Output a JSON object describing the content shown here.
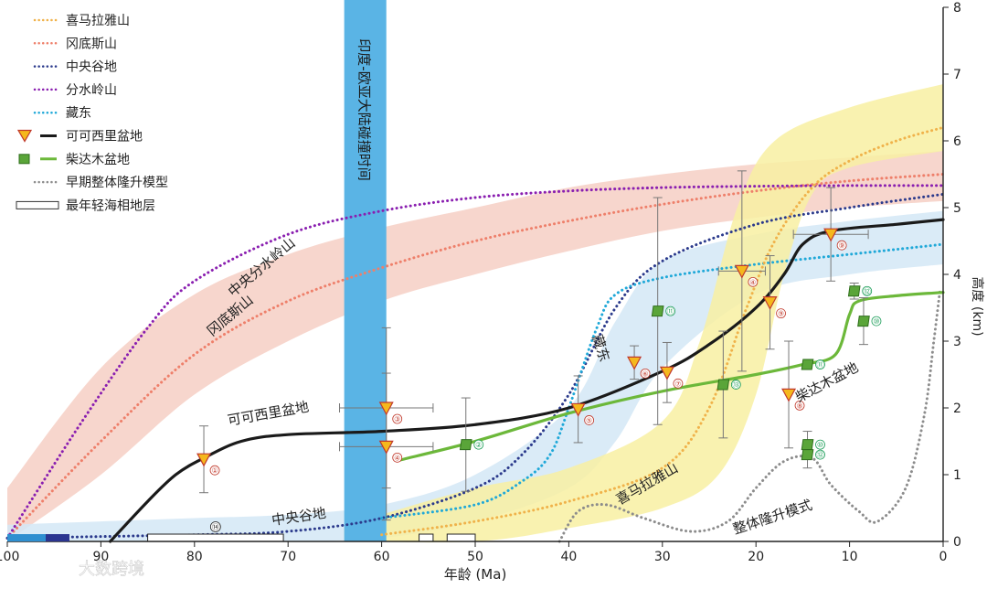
{
  "chart_data": {
    "type": "line",
    "xlabel": "年龄 (Ma)",
    "ylabel": "高度 (km)",
    "xlim": [
      100,
      0
    ],
    "ylim": [
      0,
      8
    ],
    "x_ticks": [
      "100",
      "90",
      "80",
      "70",
      "60",
      "50",
      "40",
      "30",
      "20",
      "10",
      "0"
    ],
    "y_ticks": [
      "0",
      "1",
      "2",
      "3",
      "4",
      "5",
      "6",
      "7",
      "8"
    ],
    "collision_band": {
      "label": "印度-欧亚大陆碰撞时间",
      "x_range": [
        64,
        59.5
      ],
      "color": "#5ab4e5"
    },
    "legend": [
      {
        "label": "喜马拉雅山",
        "style": "dotted",
        "color": "#f0b24a",
        "marker": "none"
      },
      {
        "label": "冈底斯山",
        "style": "dotted",
        "color": "#ee7f6a",
        "marker": "none"
      },
      {
        "label": "中央谷地",
        "style": "dotted",
        "color": "#2b3a8c",
        "marker": "none"
      },
      {
        "label": "分水岭山",
        "style": "dotted",
        "color": "#8a1fb0",
        "marker": "none"
      },
      {
        "label": "藏东",
        "style": "dotted",
        "color": "#1fa8d8",
        "marker": "none"
      },
      {
        "label": "可可西里盆地",
        "style": "solid",
        "color": "#1a1a1a",
        "marker": "triangle"
      },
      {
        "label": "柴达木盆地",
        "style": "solid",
        "color": "#6cb83a",
        "marker": "square"
      },
      {
        "label": "早期整体隆升模型",
        "style": "dotted",
        "color": "#8c8c8c",
        "marker": "none"
      },
      {
        "label": "最年轻海相地层",
        "style": "box",
        "color": "#333333",
        "marker": "none"
      }
    ],
    "bands": [
      {
        "name": "冈底斯山",
        "color": "#f6cfc4",
        "upper": [
          [
            100,
            0.8
          ],
          [
            90,
            2.6
          ],
          [
            80,
            3.7
          ],
          [
            70,
            4.3
          ],
          [
            60,
            4.7
          ],
          [
            50,
            5.0
          ],
          [
            40,
            5.3
          ],
          [
            30,
            5.5
          ],
          [
            20,
            5.65
          ],
          [
            10,
            5.75
          ],
          [
            0,
            5.85
          ]
        ],
        "lower": [
          [
            100,
            0.0
          ],
          [
            90,
            1.0
          ],
          [
            80,
            2.2
          ],
          [
            70,
            3.0
          ],
          [
            60,
            3.6
          ],
          [
            50,
            4.0
          ],
          [
            40,
            4.35
          ],
          [
            30,
            4.65
          ],
          [
            20,
            4.85
          ],
          [
            10,
            5.0
          ],
          [
            0,
            5.1
          ]
        ]
      },
      {
        "name": "中央谷地",
        "color": "#d3e8f6",
        "upper": [
          [
            100,
            0.25
          ],
          [
            90,
            0.3
          ],
          [
            80,
            0.35
          ],
          [
            70,
            0.4
          ],
          [
            60,
            0.55
          ],
          [
            50,
            1.0
          ],
          [
            40,
            2.0
          ],
          [
            35,
            3.3
          ],
          [
            30,
            4.2
          ],
          [
            20,
            4.6
          ],
          [
            10,
            4.8
          ],
          [
            0,
            4.95
          ]
        ],
        "lower": [
          [
            100,
            0.0
          ],
          [
            90,
            0.0
          ],
          [
            80,
            0.0
          ],
          [
            70,
            0.0
          ],
          [
            60,
            0.05
          ],
          [
            50,
            0.3
          ],
          [
            40,
            0.8
          ],
          [
            35,
            1.5
          ],
          [
            30,
            2.6
          ],
          [
            20,
            3.7
          ],
          [
            10,
            4.0
          ],
          [
            0,
            4.15
          ]
        ]
      },
      {
        "name": "喜马拉雅山",
        "color": "#f8f0a2",
        "upper": [
          [
            64,
            0.2
          ],
          [
            60,
            0.4
          ],
          [
            50,
            0.8
          ],
          [
            40,
            1.1
          ],
          [
            30,
            1.8
          ],
          [
            26,
            3.0
          ],
          [
            22,
            5.0
          ],
          [
            18,
            6.0
          ],
          [
            10,
            6.5
          ],
          [
            0,
            6.85
          ]
        ],
        "lower": [
          [
            64,
            0.0
          ],
          [
            50,
            0.0
          ],
          [
            40,
            0.2
          ],
          [
            30,
            0.5
          ],
          [
            24,
            1.0
          ],
          [
            20,
            2.2
          ],
          [
            17,
            4.0
          ],
          [
            14,
            5.2
          ],
          [
            10,
            5.6
          ],
          [
            0,
            5.85
          ]
        ]
      }
    ],
    "series": [
      {
        "name": "冈底斯山",
        "style": "dotted",
        "color": "#ee7f6a",
        "points": [
          [
            100,
            0.05
          ],
          [
            90,
            1.5
          ],
          [
            80,
            2.8
          ],
          [
            70,
            3.6
          ],
          [
            60,
            4.1
          ],
          [
            50,
            4.5
          ],
          [
            40,
            4.8
          ],
          [
            30,
            5.05
          ],
          [
            20,
            5.25
          ],
          [
            10,
            5.4
          ],
          [
            0,
            5.5
          ]
        ]
      },
      {
        "name": "分水岭山",
        "style": "dotted",
        "color": "#8a1fb0",
        "points": [
          [
            100,
            0.05
          ],
          [
            92,
            1.8
          ],
          [
            85,
            3.2
          ],
          [
            80,
            3.9
          ],
          [
            70,
            4.6
          ],
          [
            60,
            4.95
          ],
          [
            50,
            5.15
          ],
          [
            40,
            5.25
          ],
          [
            30,
            5.3
          ],
          [
            20,
            5.32
          ],
          [
            10,
            5.33
          ],
          [
            0,
            5.33
          ]
        ]
      },
      {
        "name": "中央谷地",
        "style": "dotted",
        "color": "#2b3a8c",
        "points": [
          [
            100,
            0.05
          ],
          [
            80,
            0.1
          ],
          [
            70,
            0.15
          ],
          [
            60,
            0.35
          ],
          [
            50,
            0.8
          ],
          [
            45,
            1.3
          ],
          [
            40,
            2.2
          ],
          [
            35,
            3.5
          ],
          [
            30,
            4.2
          ],
          [
            20,
            4.75
          ],
          [
            10,
            5.0
          ],
          [
            0,
            5.2
          ]
        ]
      },
      {
        "name": "藏东",
        "style": "dotted",
        "color": "#1fa8d8",
        "points": [
          [
            60,
            0.35
          ],
          [
            50,
            0.55
          ],
          [
            45,
            0.9
          ],
          [
            42,
            1.3
          ],
          [
            40,
            2.0
          ],
          [
            37,
            3.2
          ],
          [
            35,
            3.7
          ],
          [
            30,
            3.95
          ],
          [
            20,
            4.15
          ],
          [
            10,
            4.3
          ],
          [
            0,
            4.45
          ]
        ]
      },
      {
        "name": "喜马拉雅山",
        "style": "dotted",
        "color": "#f0b24a",
        "points": [
          [
            60,
            0.1
          ],
          [
            50,
            0.3
          ],
          [
            40,
            0.6
          ],
          [
            30,
            1.1
          ],
          [
            25,
            2.0
          ],
          [
            21,
            3.5
          ],
          [
            18,
            4.5
          ],
          [
            14,
            5.3
          ],
          [
            10,
            5.7
          ],
          [
            5,
            6.0
          ],
          [
            0,
            6.2
          ]
        ]
      },
      {
        "name": "早期整体隆升模型",
        "style": "dotted",
        "color": "#8c8c8c",
        "points": [
          [
            41,
            0.0
          ],
          [
            39,
            0.45
          ],
          [
            36,
            0.55
          ],
          [
            32,
            0.35
          ],
          [
            27,
            0.15
          ],
          [
            23,
            0.3
          ],
          [
            20,
            0.8
          ],
          [
            17,
            1.2
          ],
          [
            14,
            1.25
          ],
          [
            12,
            0.85
          ],
          [
            9,
            0.45
          ],
          [
            7,
            0.3
          ],
          [
            4,
            0.8
          ],
          [
            2,
            1.9
          ],
          [
            1,
            3.0
          ],
          [
            0.3,
            3.8
          ]
        ]
      },
      {
        "name": "可可西里盆地",
        "style": "solid",
        "color": "#1a1a1a",
        "points": [
          [
            89,
            0.0
          ],
          [
            85,
            0.6
          ],
          [
            82,
            1.0
          ],
          [
            79,
            1.25
          ],
          [
            75,
            1.5
          ],
          [
            70,
            1.6
          ],
          [
            60,
            1.65
          ],
          [
            50,
            1.75
          ],
          [
            40,
            2.0
          ],
          [
            30,
            2.55
          ],
          [
            25,
            2.95
          ],
          [
            20,
            3.5
          ],
          [
            17,
            4.0
          ],
          [
            15,
            4.45
          ],
          [
            12,
            4.65
          ],
          [
            5,
            4.75
          ],
          [
            0,
            4.82
          ]
        ]
      },
      {
        "name": "柴达木盆地",
        "style": "solid",
        "color": "#6cb83a",
        "points": [
          [
            58,
            1.22
          ],
          [
            50,
            1.5
          ],
          [
            40,
            1.92
          ],
          [
            30,
            2.25
          ],
          [
            20,
            2.5
          ],
          [
            15,
            2.65
          ],
          [
            11.5,
            2.8
          ],
          [
            10,
            3.4
          ],
          [
            9,
            3.6
          ],
          [
            5,
            3.68
          ],
          [
            0,
            3.73
          ]
        ]
      }
    ],
    "kekexili_points": [
      {
        "label": "①",
        "x": 79,
        "y": 1.23,
        "xerr": 0,
        "yerr": 0.5
      },
      {
        "label": "③",
        "x": 59.5,
        "y": 2.0,
        "xerr": 5,
        "yerr": 1.2
      },
      {
        "label": "④",
        "x": 59.5,
        "y": 1.42,
        "xerr": 5,
        "yerr": 1.1
      },
      {
        "label": "⑤",
        "x": 39,
        "y": 1.98,
        "xerr": 0,
        "yerr": 0.5
      },
      {
        "label": "⑥",
        "x": 33,
        "y": 2.68,
        "xerr": 0,
        "yerr": 0.25
      },
      {
        "label": "⑦",
        "x": 29.5,
        "y": 2.53,
        "xerr": 0,
        "yerr": 0.45
      },
      {
        "label": "④",
        "x": 21.5,
        "y": 4.05,
        "xerr": 2.5,
        "yerr": 1.5
      },
      {
        "label": "⑨",
        "x": 18.5,
        "y": 3.58,
        "xerr": 0,
        "yerr": 0.7
      },
      {
        "label": "⑧",
        "x": 16.5,
        "y": 2.2,
        "xerr": 0,
        "yerr": 0.8
      },
      {
        "label": "⑨",
        "x": 12,
        "y": 4.6,
        "xerr": 4,
        "yerr": 0.7
      }
    ],
    "qaidam_points": [
      {
        "label": "⑪",
        "x": 30.5,
        "y": 3.45,
        "xerr": 0,
        "yerr": 1.7
      },
      {
        "label": "②",
        "x": 51,
        "y": 1.45,
        "xerr": 0,
        "yerr": 0.7
      },
      {
        "label": "⑬",
        "x": 23.5,
        "y": 2.35,
        "xerr": 0,
        "yerr": 0.8
      },
      {
        "label": "⑪",
        "x": 14.5,
        "y": 2.65,
        "xerr": 0,
        "yerr": 0
      },
      {
        "label": "⑫",
        "x": 9.5,
        "y": 3.75,
        "xerr": 0,
        "yerr": 0.12
      },
      {
        "label": "⑩",
        "x": 8.5,
        "y": 3.3,
        "xerr": 0,
        "yerr": 0.35
      },
      {
        "label": "⑩",
        "x": 14.5,
        "y": 1.45,
        "xerr": 0,
        "yerr": 0.2
      },
      {
        "label": "⑫",
        "x": 14.5,
        "y": 1.3,
        "xerr": 0,
        "yerr": 0.2
      }
    ],
    "marine_strata": [
      {
        "label": "⑭",
        "x_range": [
          85,
          70.5
        ]
      },
      {
        "x_range": [
          56,
          54.5
        ]
      },
      {
        "x_range": [
          53,
          50
        ]
      }
    ],
    "curve_labels": [
      "中央分水岭山",
      "冈底斯山",
      "可可西里盆地",
      "中央谷地",
      "藏东",
      "喜马拉雅山",
      "柴达木盆地",
      "整体隆升模式"
    ],
    "timebar_colors": [
      "#2f8fd0",
      "#2b3590"
    ],
    "watermark": "大数跨境"
  }
}
